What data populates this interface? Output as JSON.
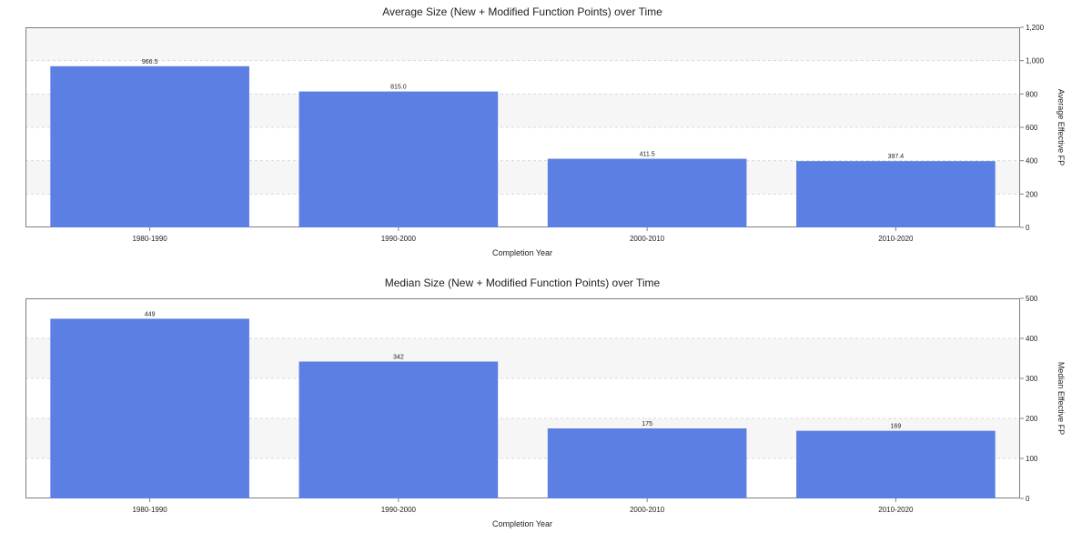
{
  "chart_data": [
    {
      "type": "bar",
      "title": "Average Size (New + Modified Function Points) over Time",
      "xlabel": "Completion Year",
      "ylabel": "Average Effective FP",
      "categories": [
        "1980-1990",
        "1990-2000",
        "2000-2010",
        "2010-2020"
      ],
      "values": [
        966.5,
        815.0,
        411.5,
        397.4
      ],
      "data_labels": [
        "966.5",
        "815.0",
        "411.5",
        "397.4"
      ],
      "ylim": [
        0,
        1200
      ],
      "yticks": [
        0,
        200,
        400,
        600,
        800,
        1000,
        1200
      ],
      "ytick_labels": [
        "0",
        "200",
        "400",
        "600",
        "800",
        "1,000",
        "1,200"
      ],
      "y_axis_side": "right",
      "grid": true,
      "bar_color": "#5b7fe2"
    },
    {
      "type": "bar",
      "title": "Median Size (New + Modified Function Points) over Time",
      "xlabel": "Completion Year",
      "ylabel": "Median Effective FP",
      "categories": [
        "1980-1990",
        "1990-2000",
        "2000-2010",
        "2010-2020"
      ],
      "values": [
        449,
        342,
        175,
        169
      ],
      "data_labels": [
        "449",
        "342",
        "175",
        "169"
      ],
      "ylim": [
        0,
        500
      ],
      "yticks": [
        0,
        100,
        200,
        300,
        400,
        500
      ],
      "ytick_labels": [
        "0",
        "100",
        "200",
        "300",
        "400",
        "500"
      ],
      "y_axis_side": "right",
      "grid": true,
      "bar_color": "#5b7fe2"
    }
  ]
}
